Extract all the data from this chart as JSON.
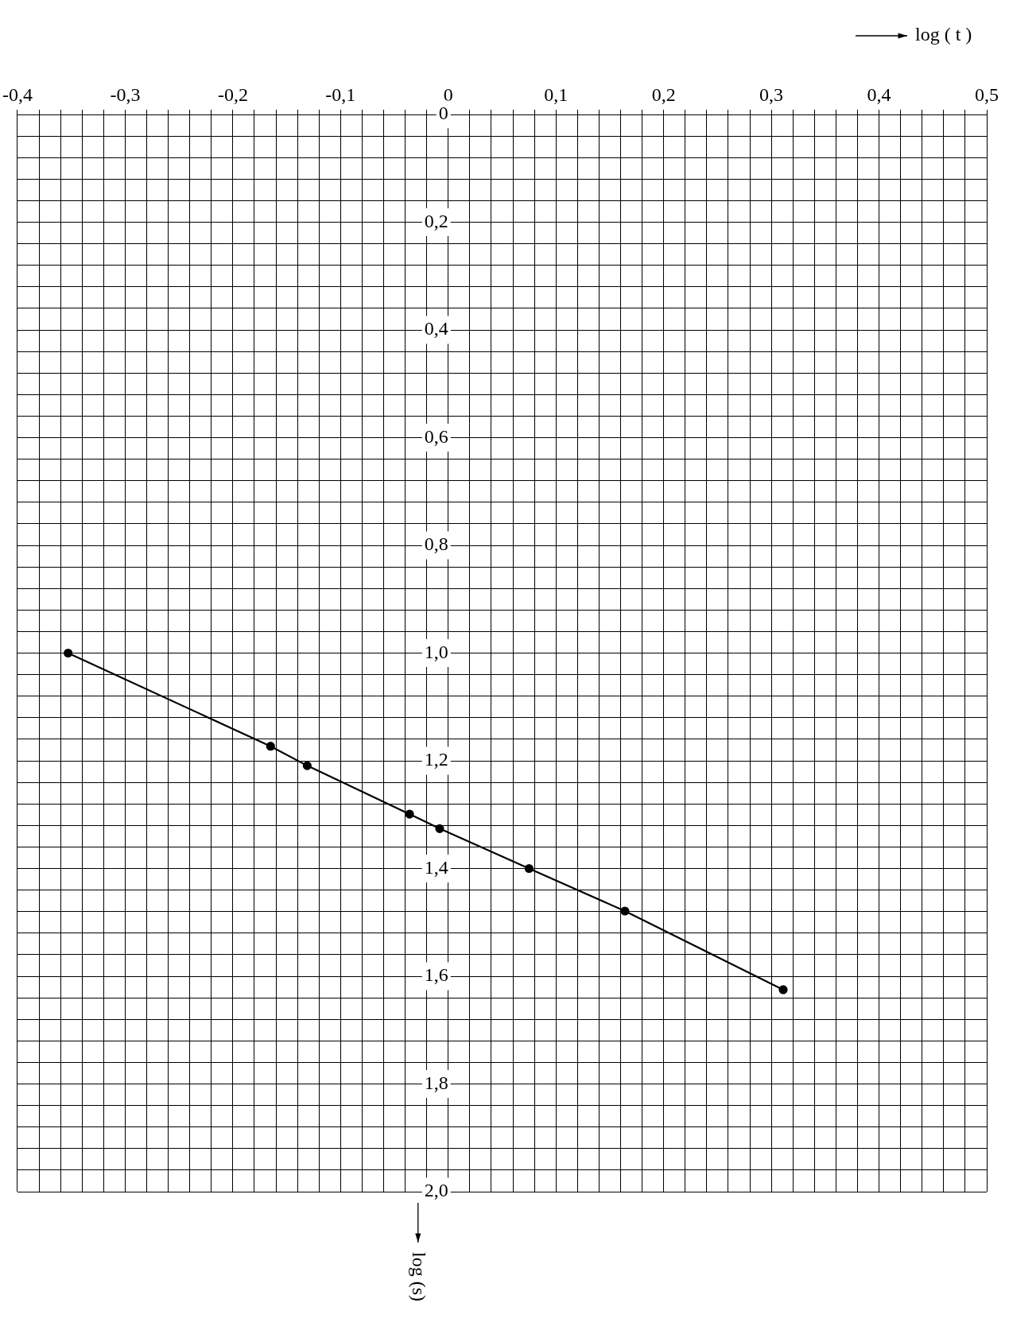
{
  "chart_data": {
    "type": "line",
    "xlabel": "log ( t )",
    "ylabel": "log (s)",
    "x": [
      -0.353,
      -0.165,
      -0.131,
      -0.036,
      -0.008,
      0.075,
      0.164,
      0.311
    ],
    "series": [
      {
        "color": "#000000",
        "values": [
          1.0,
          1.173,
          1.209,
          1.299,
          1.326,
          1.4,
          1.479,
          1.625
        ]
      }
    ],
    "marker": "circle",
    "line_style": "solid",
    "grid": true,
    "legend": false,
    "ylim": [
      2.0,
      0
    ],
    "xlim": [
      -0.4,
      0.5
    ],
    "yticks": [
      {
        "value": 0,
        "label": "0"
      },
      {
        "value": 0.04,
        "label": null
      },
      {
        "value": 0.08,
        "label": null
      },
      {
        "value": 0.12,
        "label": null
      },
      {
        "value": 0.16,
        "label": null
      },
      {
        "value": 0.2,
        "label": "0,2"
      },
      {
        "value": 0.24,
        "label": null
      },
      {
        "value": 0.28,
        "label": null
      },
      {
        "value": 0.32,
        "label": null
      },
      {
        "value": 0.36,
        "label": null
      },
      {
        "value": 0.4,
        "label": "0,4"
      },
      {
        "value": 0.44,
        "label": null
      },
      {
        "value": 0.48,
        "label": null
      },
      {
        "value": 0.52,
        "label": null
      },
      {
        "value": 0.56,
        "label": null
      },
      {
        "value": 0.6,
        "label": "0,6"
      },
      {
        "value": 0.64,
        "label": null
      },
      {
        "value": 0.68,
        "label": null
      },
      {
        "value": 0.72,
        "label": null
      },
      {
        "value": 0.76,
        "label": null
      },
      {
        "value": 0.8,
        "label": "0,8"
      },
      {
        "value": 0.84,
        "label": null
      },
      {
        "value": 0.88,
        "label": null
      },
      {
        "value": 0.92,
        "label": null
      },
      {
        "value": 0.96,
        "label": null
      },
      {
        "value": 1.0,
        "label": "1,0"
      },
      {
        "value": 1.04,
        "label": null
      },
      {
        "value": 1.08,
        "label": null
      },
      {
        "value": 1.12,
        "label": null
      },
      {
        "value": 1.16,
        "label": null
      },
      {
        "value": 1.2,
        "label": "1,2"
      },
      {
        "value": 1.24,
        "label": null
      },
      {
        "value": 1.28,
        "label": null
      },
      {
        "value": 1.32,
        "label": null
      },
      {
        "value": 1.36,
        "label": null
      },
      {
        "value": 1.4,
        "label": "1,4"
      },
      {
        "value": 1.44,
        "label": null
      },
      {
        "value": 1.48,
        "label": null
      },
      {
        "value": 1.52,
        "label": null
      },
      {
        "value": 1.56,
        "label": null
      },
      {
        "value": 1.6,
        "label": "1,6"
      },
      {
        "value": 1.64,
        "label": null
      },
      {
        "value": 1.68,
        "label": null
      },
      {
        "value": 1.72,
        "label": null
      },
      {
        "value": 1.76,
        "label": null
      },
      {
        "value": 1.8,
        "label": "1,8"
      },
      {
        "value": 1.84,
        "label": null
      },
      {
        "value": 1.88,
        "label": null
      },
      {
        "value": 1.92,
        "label": null
      },
      {
        "value": 1.96,
        "label": null
      },
      {
        "value": 2.0,
        "label": "2,0"
      }
    ],
    "xticks": [
      {
        "value": -0.4,
        "label": "-0,4"
      },
      {
        "value": -0.38,
        "label": null
      },
      {
        "value": -0.36,
        "label": null
      },
      {
        "value": -0.34,
        "label": null
      },
      {
        "value": -0.32,
        "label": null
      },
      {
        "value": -0.3,
        "label": "-0,3"
      },
      {
        "value": -0.28,
        "label": null
      },
      {
        "value": -0.26,
        "label": null
      },
      {
        "value": -0.24,
        "label": null
      },
      {
        "value": -0.22,
        "label": null
      },
      {
        "value": -0.2,
        "label": "-0,2"
      },
      {
        "value": -0.18,
        "label": null
      },
      {
        "value": -0.16,
        "label": null
      },
      {
        "value": -0.14,
        "label": null
      },
      {
        "value": -0.12,
        "label": null
      },
      {
        "value": -0.1,
        "label": "-0,1"
      },
      {
        "value": -0.08,
        "label": null
      },
      {
        "value": -0.06,
        "label": null
      },
      {
        "value": -0.04,
        "label": null
      },
      {
        "value": -0.02,
        "label": null
      },
      {
        "value": 0,
        "label": "0"
      },
      {
        "value": 0.02,
        "label": null
      },
      {
        "value": 0.04,
        "label": null
      },
      {
        "value": 0.06,
        "label": null
      },
      {
        "value": 0.08,
        "label": null
      },
      {
        "value": 0.1,
        "label": "0,1"
      },
      {
        "value": 0.12,
        "label": null
      },
      {
        "value": 0.14,
        "label": null
      },
      {
        "value": 0.16,
        "label": null
      },
      {
        "value": 0.18,
        "label": null
      },
      {
        "value": 0.2,
        "label": "0,2"
      },
      {
        "value": 0.22,
        "label": null
      },
      {
        "value": 0.24,
        "label": null
      },
      {
        "value": 0.26,
        "label": null
      },
      {
        "value": 0.28,
        "label": null
      },
      {
        "value": 0.3,
        "label": "0,3"
      },
      {
        "value": 0.32,
        "label": null
      },
      {
        "value": 0.34,
        "label": null
      },
      {
        "value": 0.36,
        "label": null
      },
      {
        "value": 0.38,
        "label": null
      },
      {
        "value": 0.4,
        "label": "0,4"
      },
      {
        "value": 0.42,
        "label": null
      },
      {
        "value": 0.44,
        "label": null
      },
      {
        "value": 0.46,
        "label": null
      },
      {
        "value": 0.48,
        "label": null
      },
      {
        "value": 0.5,
        "label": "0,5"
      }
    ]
  }
}
